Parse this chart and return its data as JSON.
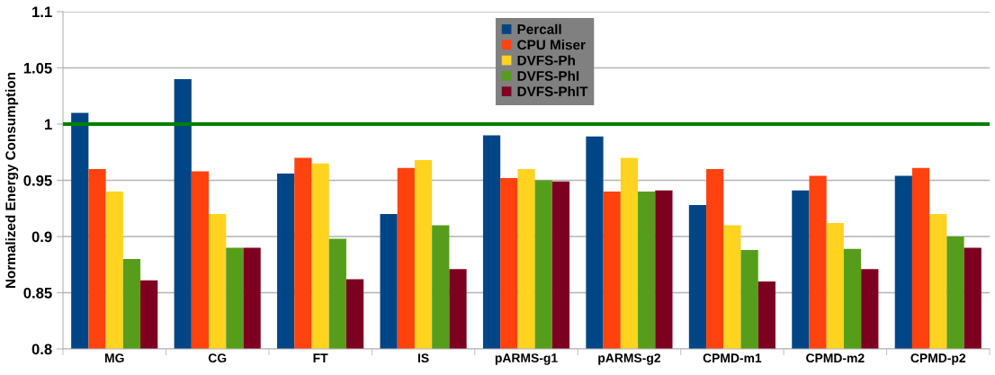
{
  "chart_data": {
    "type": "bar",
    "ylabel": "Normalized Energy Consumption",
    "categories": [
      "MG",
      "CG",
      "FT",
      "IS",
      "pARMS-g1",
      "pARMS-g2",
      "CPMD-m1",
      "CPMD-m2",
      "CPMD-p2"
    ],
    "series": [
      {
        "name": "Percall",
        "color": "#004586",
        "values": [
          1.01,
          1.04,
          0.956,
          0.92,
          0.99,
          0.989,
          0.928,
          0.941,
          0.954
        ]
      },
      {
        "name": "CPU Miser",
        "color": "#ff420e",
        "values": [
          0.96,
          0.958,
          0.97,
          0.961,
          0.952,
          0.94,
          0.96,
          0.954,
          0.961
        ]
      },
      {
        "name": "DVFS-Ph",
        "color": "#ffd320",
        "values": [
          0.94,
          0.92,
          0.965,
          0.968,
          0.96,
          0.97,
          0.91,
          0.912,
          0.92
        ]
      },
      {
        "name": "DVFS-PhI",
        "color": "#579d1c",
        "values": [
          0.88,
          0.89,
          0.898,
          0.91,
          0.95,
          0.94,
          0.888,
          0.889,
          0.9
        ]
      },
      {
        "name": "DVFS-PhIT",
        "color": "#7e0021",
        "values": [
          0.861,
          0.89,
          0.862,
          0.871,
          0.949,
          0.941,
          0.86,
          0.871,
          0.89
        ]
      }
    ],
    "ylim": [
      0.8,
      1.1
    ],
    "yticks": [
      0.8,
      0.85,
      0.9,
      0.95,
      1,
      1.05,
      1.1
    ],
    "ref_lines": [
      {
        "axis": "y",
        "value": 1,
        "color": "#008000"
      }
    ],
    "grid": "y",
    "legend": "top"
  }
}
